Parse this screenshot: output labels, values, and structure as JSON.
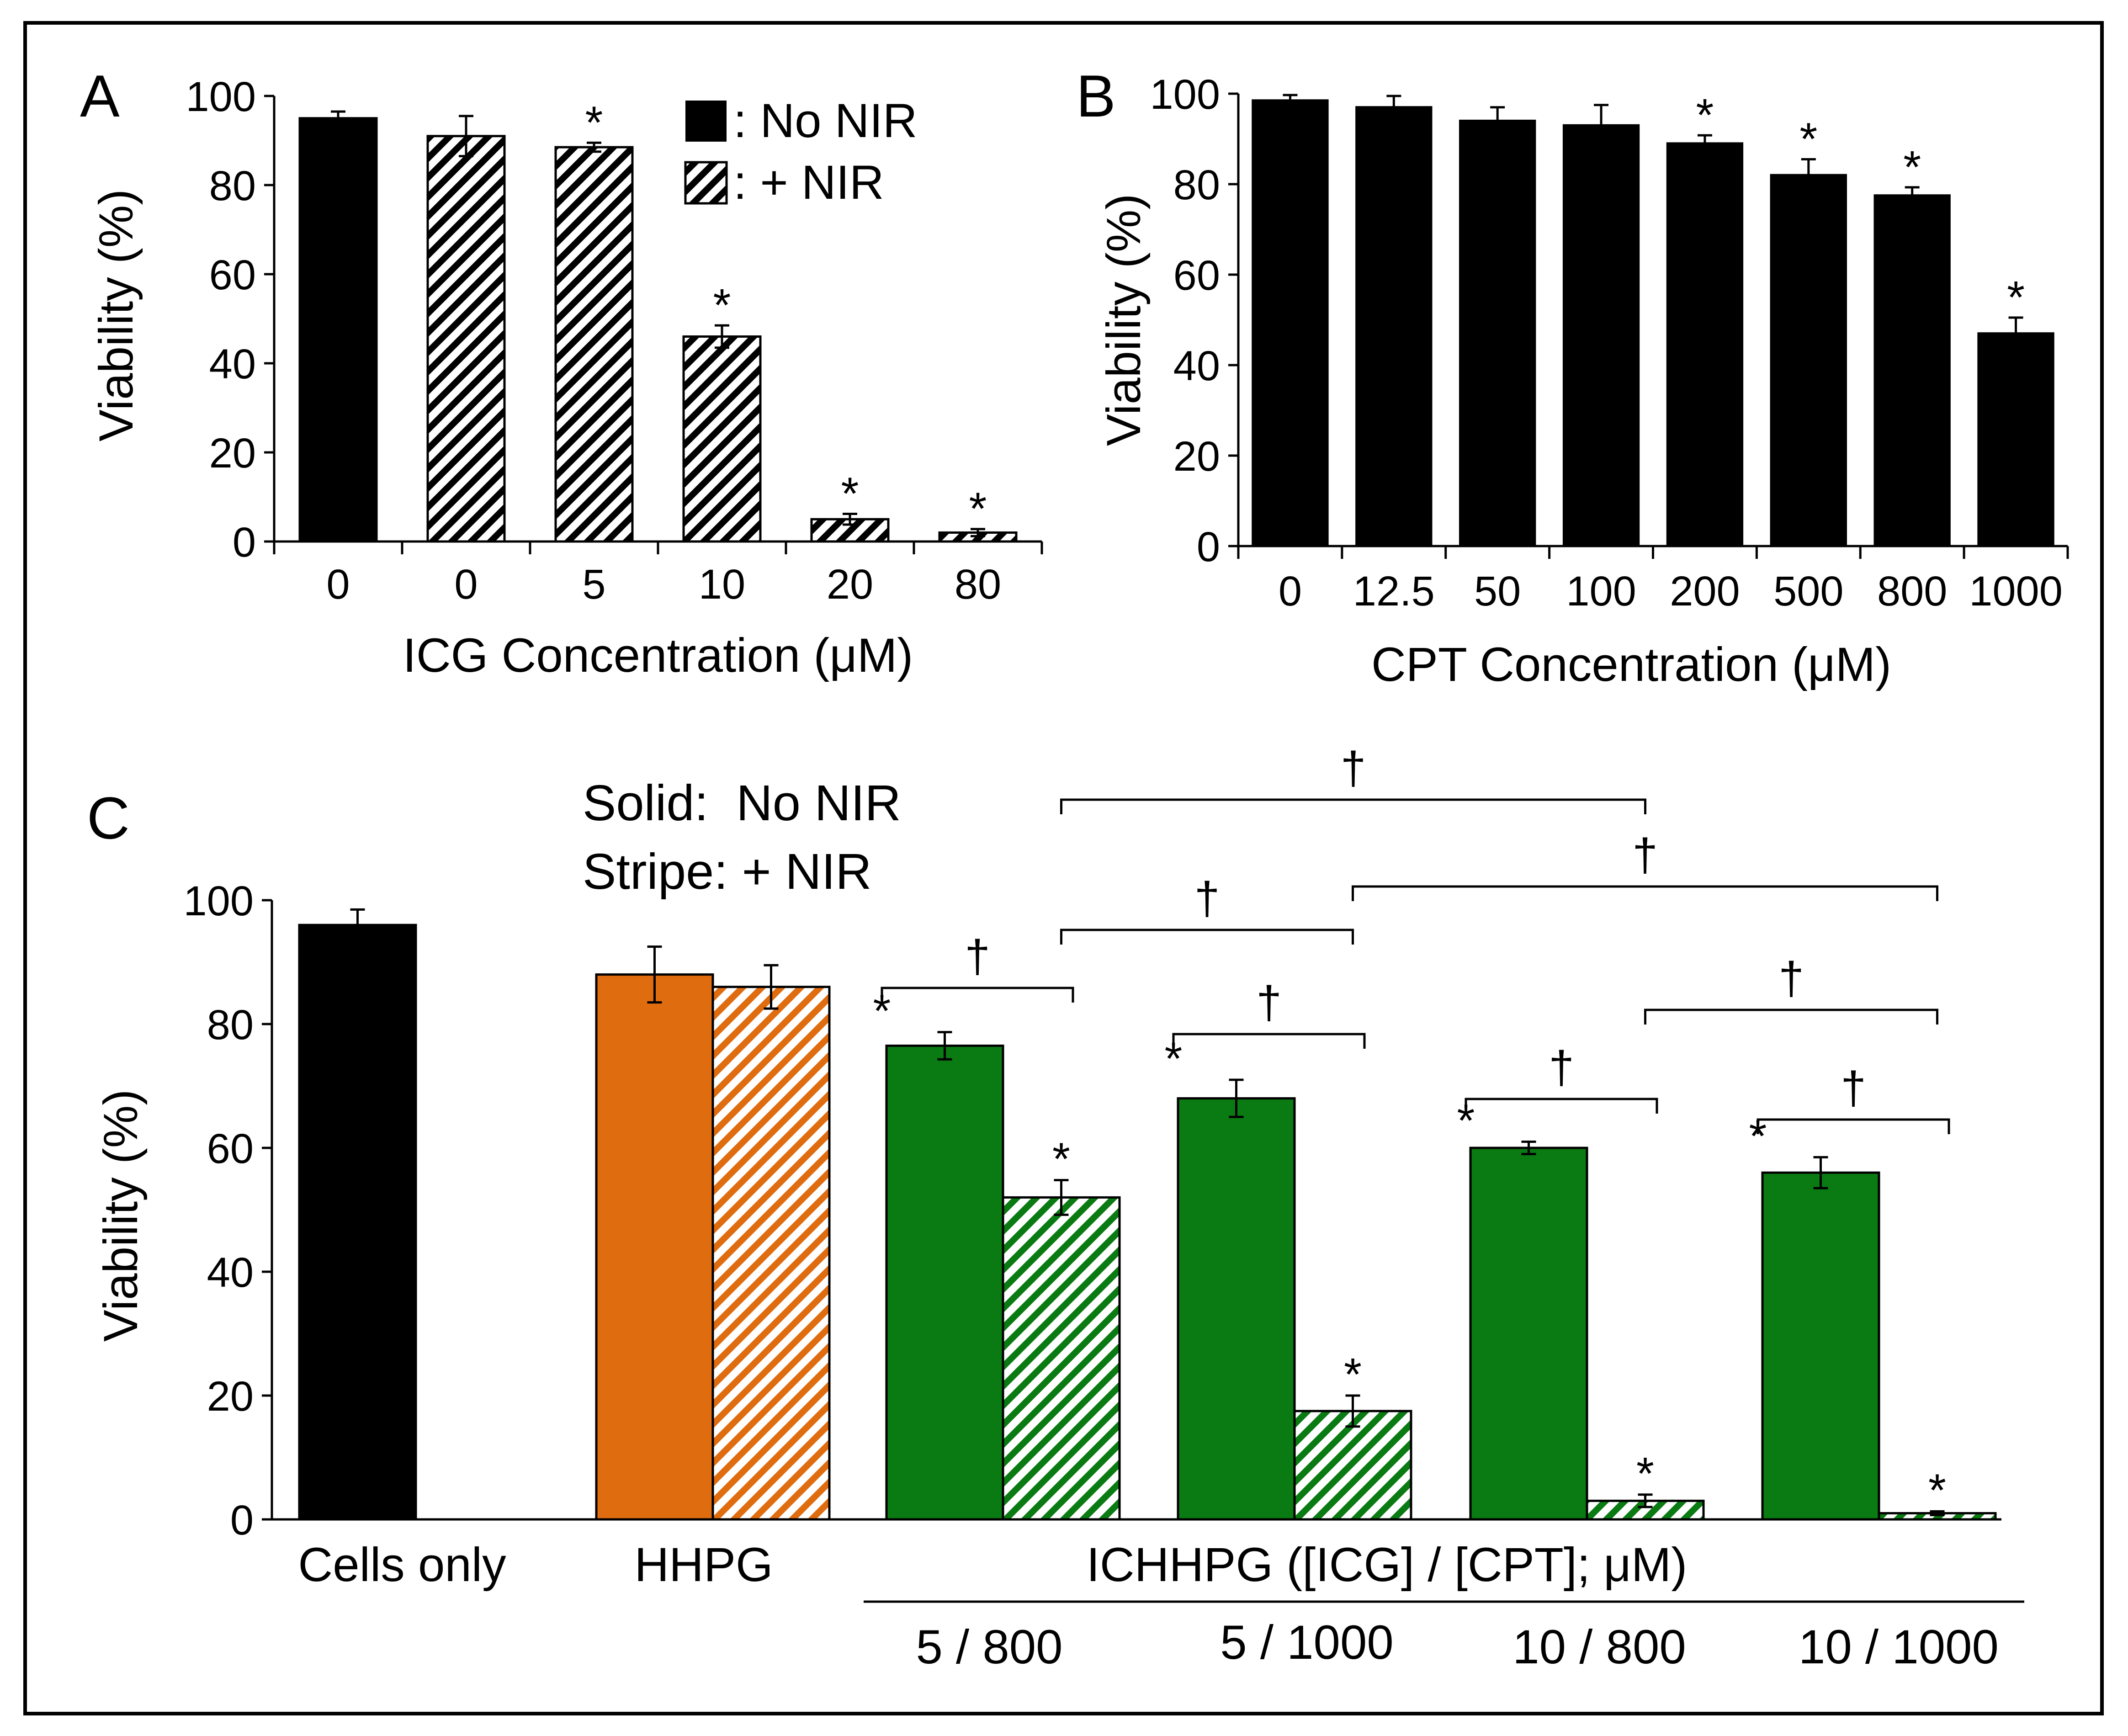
{
  "colors": {
    "black": "#000000",
    "hhpg": "#e06c10",
    "ichhpg": "#0a7a12"
  },
  "chart_data": [
    {
      "type": "bar",
      "panel": "A",
      "categories": [
        "0",
        "0",
        "5",
        "10",
        "20",
        "80"
      ],
      "values": [
        95,
        91,
        88.5,
        46,
        5,
        2
      ],
      "errors": [
        1.5,
        4.5,
        1,
        2.5,
        1.2,
        0.8
      ],
      "fill": [
        "solid",
        "stripe",
        "stripe",
        "stripe",
        "stripe",
        "stripe"
      ],
      "significant": [
        false,
        false,
        true,
        true,
        true,
        true
      ],
      "significance_mark": "*",
      "xlabel": "ICG Concentration (μM)",
      "ylabel": "Viability (%)",
      "ylim": [
        0,
        100
      ],
      "yticks": [
        "0",
        "20",
        "40",
        "60",
        "80",
        "100"
      ],
      "legend": [
        {
          "fill": "solid",
          "label": ": No NIR"
        },
        {
          "fill": "stripe",
          "label": ": + NIR"
        }
      ]
    },
    {
      "type": "bar",
      "panel": "B",
      "categories": [
        "0",
        "12.5",
        "50",
        "100",
        "200",
        "500",
        "800",
        "1000"
      ],
      "values": [
        98.5,
        97,
        94,
        93,
        89,
        82,
        77.5,
        47
      ],
      "errors": [
        1.2,
        2.5,
        3,
        4.5,
        1.8,
        3.5,
        1.8,
        3.5
      ],
      "significant": [
        false,
        false,
        false,
        false,
        true,
        true,
        true,
        true
      ],
      "significance_mark": "*",
      "xlabel": "CPT Concentration (μM)",
      "ylabel": "Viability (%)",
      "ylim": [
        0,
        100
      ],
      "yticks": [
        "0",
        "20",
        "40",
        "60",
        "80",
        "100"
      ]
    },
    {
      "type": "bar",
      "panel": "C",
      "legend_text": [
        "Solid:  No NIR",
        "Stripe: + NIR"
      ],
      "ylabel": "Viability (%)",
      "ylim": [
        0,
        100
      ],
      "yticks": [
        "0",
        "20",
        "40",
        "60",
        "80",
        "100"
      ],
      "group_labels": [
        "Cells only",
        "HHPG",
        "ICHHPG ([ICG] / [CPT]; μM)"
      ],
      "subgroup_labels": [
        "5 / 800",
        "5 / 1000",
        "10 / 800",
        "10 / 1000"
      ],
      "bars": [
        {
          "group": "Cells only",
          "fill": "solid",
          "color": "black",
          "value": 96,
          "error": 2.5,
          "significant": false
        },
        {
          "group": "HHPG",
          "fill": "solid",
          "color": "hhpg",
          "value": 88,
          "error": 4.5,
          "significant": false
        },
        {
          "group": "HHPG",
          "fill": "stripe",
          "color": "hhpg",
          "value": 86,
          "error": 3.5,
          "significant": false
        },
        {
          "group": "5 / 800",
          "fill": "solid",
          "color": "ichhpg",
          "value": 76.5,
          "error": 2.2,
          "significant": true
        },
        {
          "group": "5 / 800",
          "fill": "stripe",
          "color": "ichhpg",
          "value": 52,
          "error": 2.8,
          "significant": true
        },
        {
          "group": "5 / 1000",
          "fill": "solid",
          "color": "ichhpg",
          "value": 68,
          "error": 3,
          "significant": true
        },
        {
          "group": "5 / 1000",
          "fill": "stripe",
          "color": "ichhpg",
          "value": 17.5,
          "error": 2.5,
          "significant": true
        },
        {
          "group": "10 / 800",
          "fill": "solid",
          "color": "ichhpg",
          "value": 60,
          "error": 1,
          "significant": true
        },
        {
          "group": "10 / 800",
          "fill": "stripe",
          "color": "ichhpg",
          "value": 3,
          "error": 1,
          "significant": true
        },
        {
          "group": "10 / 1000",
          "fill": "solid",
          "color": "ichhpg",
          "value": 56,
          "error": 2.5,
          "significant": true
        },
        {
          "group": "10 / 1000",
          "fill": "stripe",
          "color": "ichhpg",
          "value": 1,
          "error": 0.3,
          "significant": true
        }
      ],
      "significance_mark": "*",
      "comparisons": [
        {
          "from_bar": 3,
          "to_bar": 4,
          "mark": "†"
        },
        {
          "from_bar": 5,
          "to_bar": 6,
          "mark": "†"
        },
        {
          "from_bar": 7,
          "to_bar": 8,
          "mark": "†"
        },
        {
          "from_bar": 9,
          "to_bar": 10,
          "mark": "†"
        },
        {
          "from_bar": 4,
          "to_bar": 6,
          "mark": "†"
        },
        {
          "from_bar": 8,
          "to_bar": 10,
          "mark": "†"
        },
        {
          "from_bar": 6,
          "to_bar": 10,
          "mark": "†"
        },
        {
          "from_bar": 4,
          "to_bar": 8,
          "mark": "†"
        }
      ]
    }
  ]
}
